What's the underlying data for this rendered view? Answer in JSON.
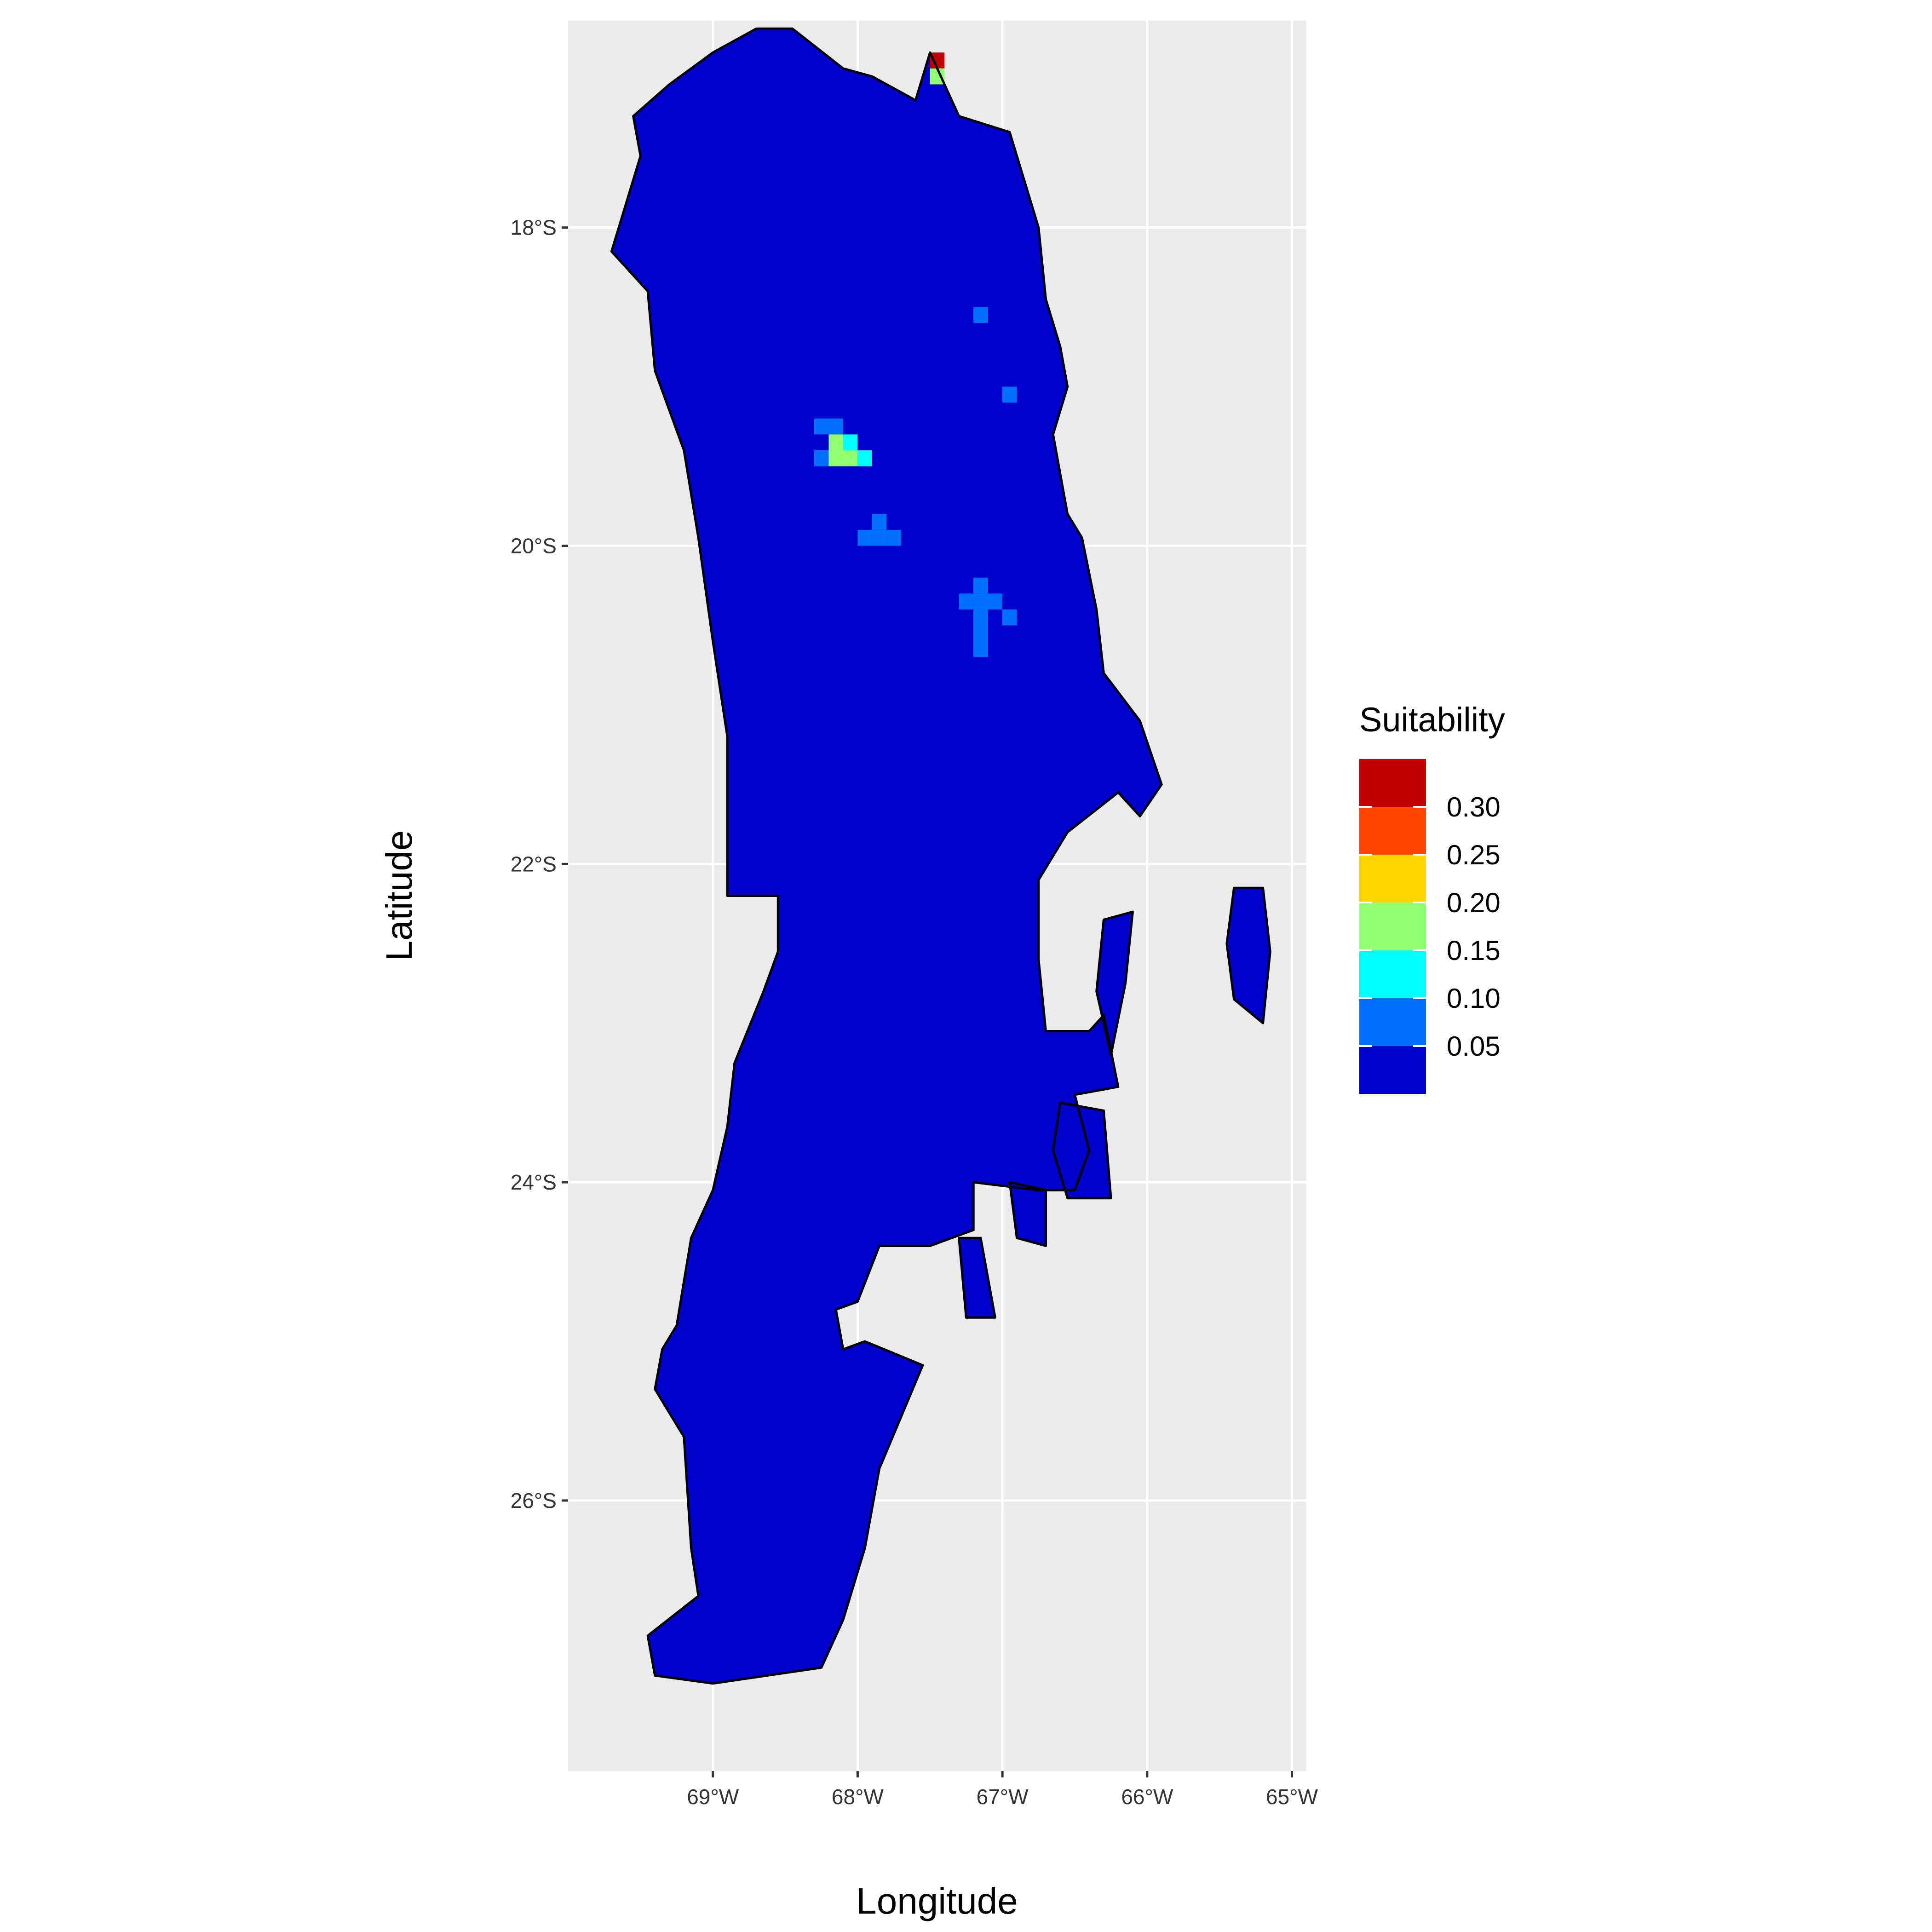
{
  "chart_data": {
    "type": "heatmap",
    "xlabel": "Longitude",
    "ylabel": "Latitude",
    "xlim": [
      -70.0,
      -64.9
    ],
    "ylim": [
      -27.7,
      -16.7
    ],
    "x_ticks": [
      {
        "value": -69,
        "label": "69°W"
      },
      {
        "value": -68,
        "label": "68°W"
      },
      {
        "value": -67,
        "label": "67°W"
      },
      {
        "value": -66,
        "label": "66°W"
      },
      {
        "value": -65,
        "label": "65°W"
      }
    ],
    "y_ticks": [
      {
        "value": -18,
        "label": "18°S"
      },
      {
        "value": -20,
        "label": "20°S"
      },
      {
        "value": -22,
        "label": "22°S"
      },
      {
        "value": -24,
        "label": "24°S"
      },
      {
        "value": -26,
        "label": "26°S"
      }
    ],
    "grid": true,
    "legend": {
      "title": "Suitability",
      "position": "right",
      "breaks": [
        "0.30",
        "0.25",
        "0.20",
        "0.15",
        "0.10",
        "0.05"
      ],
      "colors": [
        "#C00000",
        "#FF4500",
        "#FFD700",
        "#90FF70",
        "#00FFFF",
        "#0070FF",
        "#0000CC"
      ]
    },
    "region": {
      "fill_value": "0.00–0.05",
      "fill_color": "#0000CC",
      "outline_color": "#000000",
      "outline": [
        [
          -68.7,
          -16.75
        ],
        [
          -68.45,
          -16.75
        ],
        [
          -68.1,
          -17.0
        ],
        [
          -67.9,
          -17.05
        ],
        [
          -67.6,
          -17.2
        ],
        [
          -67.5,
          -16.9
        ],
        [
          -67.4,
          -17.1
        ],
        [
          -67.3,
          -17.3
        ],
        [
          -66.95,
          -17.4
        ],
        [
          -66.85,
          -17.7
        ],
        [
          -66.75,
          -18.0
        ],
        [
          -66.7,
          -18.45
        ],
        [
          -66.6,
          -18.75
        ],
        [
          -66.55,
          -19.0
        ],
        [
          -66.65,
          -19.3
        ],
        [
          -66.55,
          -19.8
        ],
        [
          -66.45,
          -19.95
        ],
        [
          -66.35,
          -20.4
        ],
        [
          -66.3,
          -20.8
        ],
        [
          -66.05,
          -21.1
        ],
        [
          -65.9,
          -21.5
        ],
        [
          -66.05,
          -21.7
        ],
        [
          -66.2,
          -21.55
        ],
        [
          -66.55,
          -21.8
        ],
        [
          -66.75,
          -22.1
        ],
        [
          -66.75,
          -22.6
        ],
        [
          -66.7,
          -23.05
        ],
        [
          -66.4,
          -23.05
        ],
        [
          -66.3,
          -22.95
        ],
        [
          -66.2,
          -23.4
        ],
        [
          -66.5,
          -23.45
        ],
        [
          -66.4,
          -23.8
        ],
        [
          -66.5,
          -24.05
        ],
        [
          -66.75,
          -24.05
        ],
        [
          -67.2,
          -24.0
        ],
        [
          -67.2,
          -24.3
        ],
        [
          -67.5,
          -24.4
        ],
        [
          -67.85,
          -24.4
        ],
        [
          -68.0,
          -24.75
        ],
        [
          -68.15,
          -24.8
        ],
        [
          -68.1,
          -25.05
        ],
        [
          -67.95,
          -25.0
        ],
        [
          -67.55,
          -25.15
        ],
        [
          -67.85,
          -25.8
        ],
        [
          -67.95,
          -26.3
        ],
        [
          -68.1,
          -26.75
        ],
        [
          -68.25,
          -27.05
        ],
        [
          -69.0,
          -27.15
        ],
        [
          -69.4,
          -27.1
        ],
        [
          -69.45,
          -26.85
        ],
        [
          -69.1,
          -26.6
        ],
        [
          -69.15,
          -26.3
        ],
        [
          -69.2,
          -25.6
        ],
        [
          -69.4,
          -25.3
        ],
        [
          -69.35,
          -25.05
        ],
        [
          -69.25,
          -24.9
        ],
        [
          -69.15,
          -24.35
        ],
        [
          -69.0,
          -24.05
        ],
        [
          -68.9,
          -23.65
        ],
        [
          -68.85,
          -23.25
        ],
        [
          -68.65,
          -22.8
        ],
        [
          -68.55,
          -22.55
        ],
        [
          -68.55,
          -22.2
        ],
        [
          -68.9,
          -22.2
        ],
        [
          -68.9,
          -21.2
        ],
        [
          -69.0,
          -20.6
        ],
        [
          -69.1,
          -19.95
        ],
        [
          -69.2,
          -19.4
        ],
        [
          -69.4,
          -18.9
        ],
        [
          -69.45,
          -18.4
        ],
        [
          -69.7,
          -18.15
        ],
        [
          -69.5,
          -17.55
        ],
        [
          -69.55,
          -17.3
        ],
        [
          -69.3,
          -17.1
        ],
        [
          -69.0,
          -16.9
        ]
      ],
      "islands": [
        [
          [
            -66.3,
            -22.35
          ],
          [
            -66.1,
            -22.3
          ],
          [
            -66.15,
            -22.75
          ],
          [
            -66.25,
            -23.2
          ],
          [
            -66.35,
            -22.8
          ]
        ],
        [
          [
            -65.4,
            -22.15
          ],
          [
            -65.2,
            -22.15
          ],
          [
            -65.15,
            -22.55
          ],
          [
            -65.2,
            -23.0
          ],
          [
            -65.4,
            -22.85
          ],
          [
            -65.45,
            -22.5
          ]
        ],
        [
          [
            -66.6,
            -23.5
          ],
          [
            -66.3,
            -23.55
          ],
          [
            -66.25,
            -24.1
          ],
          [
            -66.55,
            -24.1
          ],
          [
            -66.65,
            -23.8
          ]
        ],
        [
          [
            -67.3,
            -24.35
          ],
          [
            -67.15,
            -24.35
          ],
          [
            -67.05,
            -24.85
          ],
          [
            -67.25,
            -24.85
          ]
        ],
        [
          [
            -66.95,
            -24.0
          ],
          [
            -66.7,
            -24.05
          ],
          [
            -66.7,
            -24.4
          ],
          [
            -66.9,
            -24.35
          ]
        ]
      ]
    },
    "cells": [
      {
        "lon": -67.45,
        "lat": -16.95,
        "value": 0.32
      },
      {
        "lon": -67.45,
        "lat": -17.05,
        "value": 0.17
      },
      {
        "lon": -68.25,
        "lat": -19.25,
        "value": 0.07
      },
      {
        "lon": -68.15,
        "lat": -19.25,
        "value": 0.07
      },
      {
        "lon": -68.15,
        "lat": -19.35,
        "value": 0.17
      },
      {
        "lon": -68.05,
        "lat": -19.35,
        "value": 0.13
      },
      {
        "lon": -68.15,
        "lat": -19.45,
        "value": 0.17
      },
      {
        "lon": -68.05,
        "lat": -19.45,
        "value": 0.17
      },
      {
        "lon": -67.95,
        "lat": -19.45,
        "value": 0.13
      },
      {
        "lon": -68.25,
        "lat": -19.45,
        "value": 0.07
      },
      {
        "lon": -67.85,
        "lat": -19.85,
        "value": 0.07
      },
      {
        "lon": -67.95,
        "lat": -19.95,
        "value": 0.07
      },
      {
        "lon": -67.85,
        "lat": -19.95,
        "value": 0.07
      },
      {
        "lon": -67.75,
        "lat": -19.95,
        "value": 0.07
      },
      {
        "lon": -67.15,
        "lat": -18.55,
        "value": 0.07
      },
      {
        "lon": -66.95,
        "lat": -19.05,
        "value": 0.07
      },
      {
        "lon": -67.15,
        "lat": -20.25,
        "value": 0.07
      },
      {
        "lon": -67.25,
        "lat": -20.35,
        "value": 0.07
      },
      {
        "lon": -67.15,
        "lat": -20.35,
        "value": 0.07
      },
      {
        "lon": -67.05,
        "lat": -20.35,
        "value": 0.07
      },
      {
        "lon": -66.95,
        "lat": -20.45,
        "value": 0.07
      },
      {
        "lon": -67.15,
        "lat": -20.45,
        "value": 0.07
      },
      {
        "lon": -67.15,
        "lat": -20.55,
        "value": 0.07
      },
      {
        "lon": -67.15,
        "lat": -20.65,
        "value": 0.07
      }
    ]
  }
}
